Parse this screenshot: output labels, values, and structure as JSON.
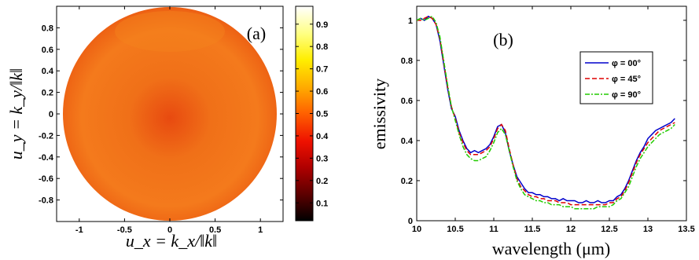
{
  "chart_data": [
    {
      "type": "heatmap",
      "panel_label": "(a)",
      "xlabel": "u_x = k_x/‖k‖",
      "ylabel": "u_y = k_y/‖k‖",
      "xlim": [
        -1.25,
        1.25
      ],
      "ylim": [
        -1,
        1
      ],
      "xticks": [
        -1,
        -0.5,
        0,
        0.5,
        1
      ],
      "xtick_labels": [
        "-1",
        "-0.5",
        "0",
        "0.5",
        "1"
      ],
      "yticks": [
        0.8,
        0.6,
        0.4,
        0.2,
        0,
        -0.2,
        -0.4,
        -0.6,
        -0.8
      ],
      "ytick_labels": [
        "0.8",
        "0.6",
        "0.4",
        "0.2",
        "0",
        "-0.2",
        "-0.4",
        "-0.6",
        "-0.8"
      ],
      "domain": "unit disk",
      "value_range": [
        0.4,
        0.6
      ],
      "colorbar": {
        "range": [
          0.02,
          0.98
        ],
        "colormap": "hot",
        "ticks": [
          0.1,
          0.2,
          0.3,
          0.4,
          0.5,
          0.6,
          0.7,
          0.8,
          0.9
        ],
        "tick_labels": [
          "0.1",
          "0.2",
          "0.3",
          "0.4",
          "0.5",
          "0.6",
          "0.7",
          "0.8",
          "0.9"
        ]
      },
      "colors": {
        "center": "#e84a10",
        "ring": "#f07018",
        "edge": "#e85010",
        "cap": "#f4831d",
        "scale": [
          "#000000",
          "#5a0000",
          "#b00000",
          "#ee1100",
          "#ff6000",
          "#ffaa00",
          "#ffee00",
          "#ffff80",
          "#ffffff"
        ]
      }
    },
    {
      "type": "line",
      "panel_label": "(b)",
      "xlabel": "wavelength (μm)",
      "ylabel": "emissivity",
      "xlim": [
        10,
        13.5
      ],
      "ylim": [
        0,
        1.07
      ],
      "xticks": [
        10,
        10.5,
        11,
        11.5,
        12,
        12.5,
        13,
        13.5
      ],
      "xtick_labels": [
        "10",
        "10.5",
        "11",
        "11.5",
        "12",
        "12.5",
        "13",
        "13.5"
      ],
      "yticks": [
        0,
        0.2,
        0.4,
        0.6,
        0.8,
        1
      ],
      "ytick_labels": [
        "0",
        "0.2",
        "0.4",
        "0.6",
        "0.8",
        "1"
      ],
      "legend_position": "top-right",
      "series": [
        {
          "name": "φ = 00°",
          "color": "#0000cc",
          "dash": "solid",
          "x": [
            10,
            10.05,
            10.1,
            10.15,
            10.2,
            10.25,
            10.3,
            10.35,
            10.4,
            10.45,
            10.5,
            10.55,
            10.6,
            10.65,
            10.7,
            10.75,
            10.8,
            10.85,
            10.9,
            10.95,
            11.0,
            11.05,
            11.1,
            11.15,
            11.2,
            11.25,
            11.3,
            11.35,
            11.4,
            11.45,
            11.5,
            11.55,
            11.6,
            11.65,
            11.7,
            11.75,
            11.8,
            11.85,
            11.9,
            11.95,
            12.0,
            12.05,
            12.1,
            12.15,
            12.2,
            12.25,
            12.3,
            12.35,
            12.4,
            12.45,
            12.5,
            12.55,
            12.6,
            12.65,
            12.7,
            12.75,
            12.8,
            12.85,
            12.9,
            12.95,
            13.0,
            13.05,
            13.1,
            13.15,
            13.2,
            13.25,
            13.3,
            13.35
          ],
          "y": [
            1.0,
            1.01,
            1.0,
            1.02,
            1.01,
            0.98,
            0.9,
            0.78,
            0.66,
            0.56,
            0.52,
            0.45,
            0.4,
            0.36,
            0.34,
            0.35,
            0.34,
            0.35,
            0.36,
            0.38,
            0.42,
            0.47,
            0.48,
            0.44,
            0.35,
            0.28,
            0.22,
            0.19,
            0.16,
            0.14,
            0.14,
            0.13,
            0.13,
            0.12,
            0.12,
            0.11,
            0.11,
            0.1,
            0.11,
            0.1,
            0.1,
            0.1,
            0.09,
            0.09,
            0.1,
            0.09,
            0.09,
            0.1,
            0.09,
            0.09,
            0.1,
            0.1,
            0.12,
            0.13,
            0.16,
            0.2,
            0.25,
            0.3,
            0.34,
            0.37,
            0.41,
            0.43,
            0.45,
            0.46,
            0.47,
            0.48,
            0.49,
            0.51
          ]
        },
        {
          "name": "φ = 45°",
          "color": "#dd0000",
          "dash": "6,3",
          "x": [
            10,
            10.05,
            10.1,
            10.15,
            10.2,
            10.25,
            10.3,
            10.35,
            10.4,
            10.45,
            10.5,
            10.55,
            10.6,
            10.65,
            10.7,
            10.75,
            10.8,
            10.85,
            10.9,
            10.95,
            11.0,
            11.05,
            11.1,
            11.15,
            11.2,
            11.25,
            11.3,
            11.35,
            11.4,
            11.45,
            11.5,
            11.55,
            11.6,
            11.65,
            11.7,
            11.75,
            11.8,
            11.85,
            11.9,
            11.95,
            12.0,
            12.05,
            12.1,
            12.15,
            12.2,
            12.25,
            12.3,
            12.35,
            12.4,
            12.45,
            12.5,
            12.55,
            12.6,
            12.65,
            12.7,
            12.75,
            12.8,
            12.85,
            12.9,
            12.95,
            13.0,
            13.05,
            13.1,
            13.15,
            13.2,
            13.25,
            13.3,
            13.35
          ],
          "y": [
            1.0,
            1.0,
            1.01,
            1.02,
            1.01,
            0.98,
            0.91,
            0.79,
            0.67,
            0.57,
            0.51,
            0.44,
            0.39,
            0.35,
            0.33,
            0.33,
            0.33,
            0.34,
            0.35,
            0.37,
            0.41,
            0.46,
            0.48,
            0.45,
            0.36,
            0.28,
            0.21,
            0.17,
            0.15,
            0.13,
            0.12,
            0.12,
            0.11,
            0.11,
            0.1,
            0.1,
            0.1,
            0.09,
            0.09,
            0.09,
            0.08,
            0.08,
            0.08,
            0.08,
            0.08,
            0.08,
            0.08,
            0.08,
            0.08,
            0.08,
            0.09,
            0.09,
            0.11,
            0.12,
            0.15,
            0.19,
            0.24,
            0.29,
            0.33,
            0.36,
            0.39,
            0.41,
            0.43,
            0.45,
            0.46,
            0.47,
            0.48,
            0.49
          ]
        },
        {
          "name": "φ = 90°",
          "color": "#22cc00",
          "dash": "6,2,2,2",
          "x": [
            10,
            10.05,
            10.1,
            10.15,
            10.2,
            10.25,
            10.3,
            10.35,
            10.4,
            10.45,
            10.5,
            10.55,
            10.6,
            10.65,
            10.7,
            10.75,
            10.8,
            10.85,
            10.9,
            10.95,
            11.0,
            11.05,
            11.1,
            11.15,
            11.2,
            11.25,
            11.3,
            11.35,
            11.4,
            11.45,
            11.5,
            11.55,
            11.6,
            11.65,
            11.7,
            11.75,
            11.8,
            11.85,
            11.9,
            11.95,
            12.0,
            12.05,
            12.1,
            12.15,
            12.2,
            12.25,
            12.3,
            12.35,
            12.4,
            12.45,
            12.5,
            12.55,
            12.6,
            12.65,
            12.7,
            12.75,
            12.8,
            12.85,
            12.9,
            12.95,
            13.0,
            13.05,
            13.1,
            13.15,
            13.2,
            13.25,
            13.3,
            13.35
          ],
          "y": [
            1.0,
            1.01,
            1.0,
            1.01,
            1.02,
            0.99,
            0.92,
            0.8,
            0.68,
            0.57,
            0.5,
            0.43,
            0.37,
            0.33,
            0.31,
            0.3,
            0.3,
            0.31,
            0.32,
            0.35,
            0.39,
            0.44,
            0.46,
            0.43,
            0.35,
            0.27,
            0.2,
            0.16,
            0.13,
            0.12,
            0.11,
            0.1,
            0.1,
            0.09,
            0.09,
            0.08,
            0.08,
            0.08,
            0.07,
            0.07,
            0.07,
            0.06,
            0.06,
            0.06,
            0.06,
            0.06,
            0.06,
            0.07,
            0.07,
            0.07,
            0.07,
            0.08,
            0.1,
            0.11,
            0.14,
            0.17,
            0.22,
            0.27,
            0.31,
            0.34,
            0.37,
            0.39,
            0.41,
            0.43,
            0.44,
            0.45,
            0.46,
            0.48
          ]
        }
      ]
    }
  ]
}
